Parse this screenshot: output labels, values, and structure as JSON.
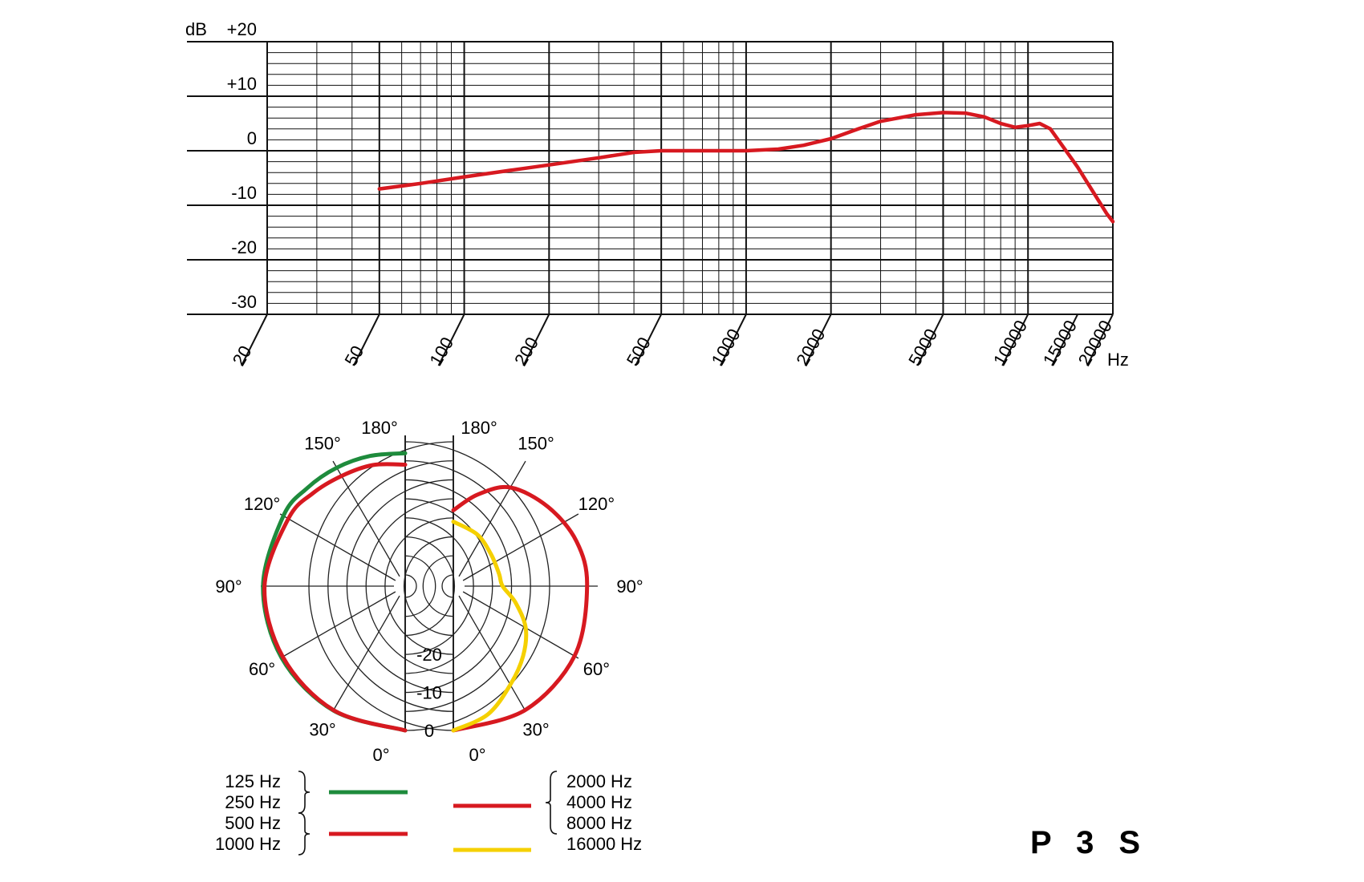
{
  "chart_data": [
    {
      "type": "line",
      "ylabel": "dB",
      "xlabel": "Hz",
      "x_scale": "log",
      "xlim": [
        20,
        20000
      ],
      "ylim": [
        -30,
        20
      ],
      "grid": true,
      "y_ticks": [
        {
          "value": 20,
          "label": "+20"
        },
        {
          "value": 10,
          "label": "+10"
        },
        {
          "value": 0,
          "label": "0"
        },
        {
          "value": -10,
          "label": "-10"
        },
        {
          "value": -20,
          "label": "-20"
        },
        {
          "value": -30,
          "label": "-30"
        }
      ],
      "x_ticks": [
        {
          "value": 20,
          "label": "20"
        },
        {
          "value": 50,
          "label": "50"
        },
        {
          "value": 100,
          "label": "100"
        },
        {
          "value": 200,
          "label": "200"
        },
        {
          "value": 500,
          "label": "500"
        },
        {
          "value": 1000,
          "label": "1000"
        },
        {
          "value": 2000,
          "label": "2000"
        },
        {
          "value": 5000,
          "label": "5000"
        },
        {
          "value": 10000,
          "label": "10000"
        },
        {
          "value": 15000,
          "label": "15000"
        },
        {
          "value": 20000,
          "label": "20000"
        }
      ],
      "series": [
        {
          "color": "#d71920",
          "points": [
            [
              50,
              -7
            ],
            [
              70,
              -6
            ],
            [
              100,
              -4.8
            ],
            [
              150,
              -3.5
            ],
            [
              200,
              -2.6
            ],
            [
              300,
              -1.3
            ],
            [
              400,
              -0.3
            ],
            [
              500,
              0
            ],
            [
              700,
              0
            ],
            [
              1000,
              0
            ],
            [
              1300,
              0.3
            ],
            [
              1600,
              1
            ],
            [
              2000,
              2.2
            ],
            [
              2500,
              4
            ],
            [
              3000,
              5.4
            ],
            [
              4000,
              6.6
            ],
            [
              5000,
              7
            ],
            [
              6000,
              6.9
            ],
            [
              7000,
              6.2
            ],
            [
              8000,
              5
            ],
            [
              9000,
              4.3
            ],
            [
              10000,
              4.6
            ],
            [
              11000,
              5
            ],
            [
              12000,
              4
            ],
            [
              13000,
              1.5
            ],
            [
              15000,
              -3
            ],
            [
              17000,
              -7.5
            ],
            [
              19000,
              -11.5
            ],
            [
              20000,
              -13
            ]
          ]
        }
      ]
    },
    {
      "type": "polar",
      "angle_labels": {
        "left": [
          "180°",
          "150°",
          "120°",
          "90°",
          "60°",
          "30°",
          "0°"
        ],
        "right": [
          "180°",
          "150°",
          "120°",
          "90°",
          "60°",
          "30°",
          "0°"
        ]
      },
      "radial_labels": [
        "-20",
        "-10",
        "0"
      ],
      "radial_range_db": [
        -35,
        0
      ],
      "series": [
        {
          "legend_group": 0,
          "color": "#1e8b3c",
          "side": "left",
          "points": [
            [
              0,
              0
            ],
            [
              30,
              -0.2
            ],
            [
              60,
              -0.4
            ],
            [
              90,
              -0.6
            ],
            [
              120,
              -1
            ],
            [
              135,
              -1.5
            ],
            [
              150,
              -2
            ],
            [
              165,
              -2.5
            ],
            [
              180,
              -3
            ]
          ]
        },
        {
          "legend_group": 1,
          "color": "#d71920",
          "side": "left",
          "points": [
            [
              0,
              0
            ],
            [
              30,
              -0.3
            ],
            [
              60,
              -0.8
            ],
            [
              90,
              -1
            ],
            [
              120,
              -2.5
            ],
            [
              135,
              -3.5
            ],
            [
              150,
              -4.5
            ],
            [
              165,
              -5
            ],
            [
              180,
              -6
            ]
          ]
        },
        {
          "legend_group": 2,
          "color": "#d71920",
          "side": "right",
          "points": [
            [
              0,
              0
            ],
            [
              30,
              -0.3
            ],
            [
              60,
              -1.2
            ],
            [
              90,
              -2.8
            ],
            [
              110,
              -3.5
            ],
            [
              130,
              -5.5
            ],
            [
              150,
              -8
            ],
            [
              165,
              -13
            ],
            [
              180,
              -18
            ]
          ]
        },
        {
          "legend_group": 3,
          "color": "#f5d000",
          "side": "right",
          "points": [
            [
              0,
              0
            ],
            [
              15,
              -3
            ],
            [
              30,
              -8
            ],
            [
              45,
              -12
            ],
            [
              60,
              -16
            ],
            [
              75,
              -21
            ],
            [
              90,
              -25
            ],
            [
              105,
              -25.5
            ],
            [
              130,
              -25
            ],
            [
              155,
              -23
            ],
            [
              180,
              -21
            ]
          ]
        }
      ]
    }
  ],
  "legend": {
    "groups": [
      {
        "labels": [
          "125 Hz",
          "250 Hz"
        ],
        "color": "#1e8b3c",
        "side": "left"
      },
      {
        "labels": [
          "500 Hz",
          "1000 Hz"
        ],
        "color": "#d71920",
        "side": "left"
      },
      {
        "labels": [
          "2000 Hz",
          "4000 Hz",
          "8000 Hz"
        ],
        "color": "#d71920",
        "side": "right"
      },
      {
        "labels": [
          "16000 Hz"
        ],
        "color": "#f5d000",
        "side": "right"
      }
    ]
  },
  "model": "P 3 S"
}
